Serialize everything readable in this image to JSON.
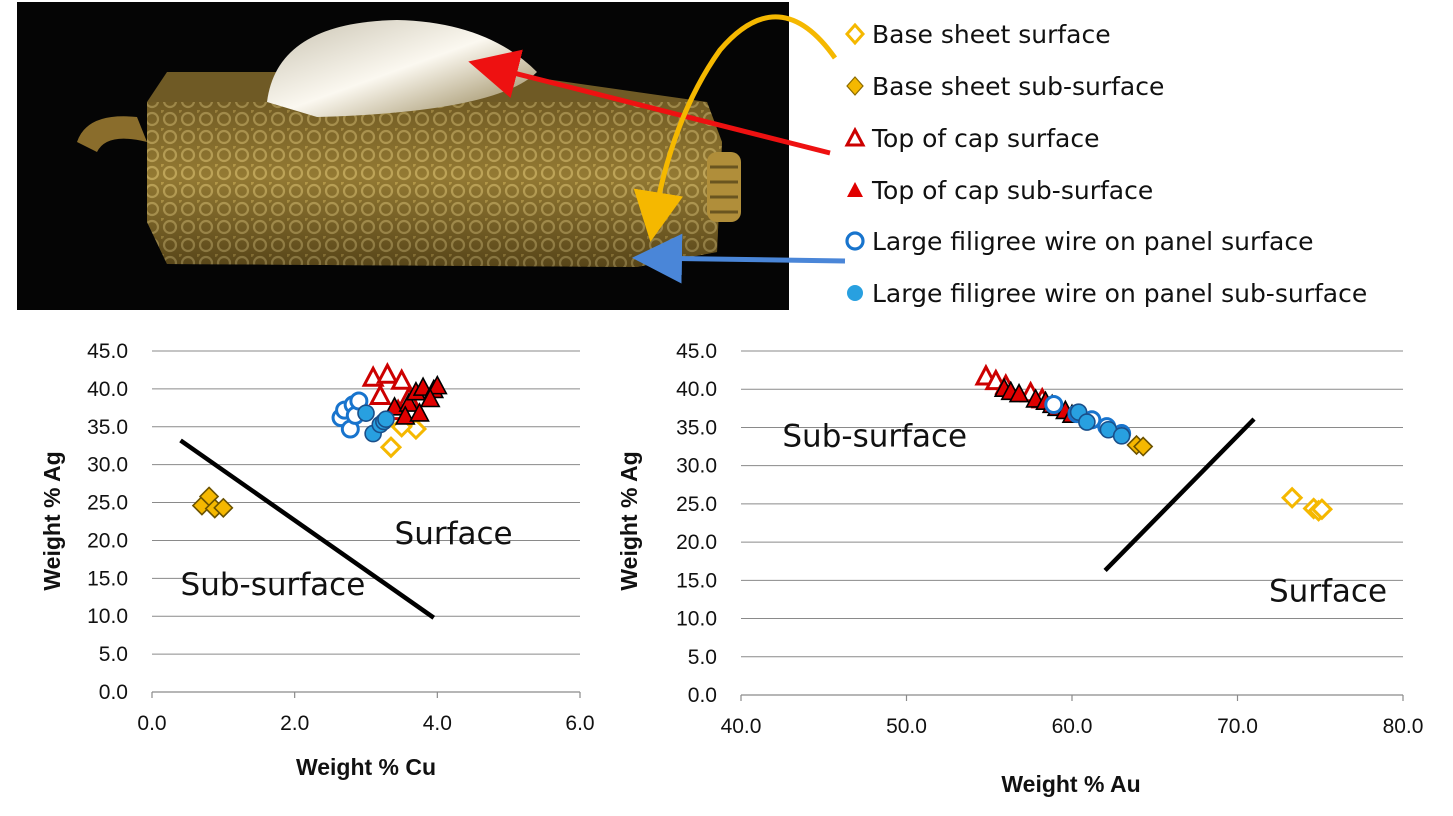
{
  "legend": [
    {
      "label": "Base sheet surface",
      "marker": "diamond",
      "filled": false,
      "color": "#F5B800"
    },
    {
      "label": "Base sheet sub-surface",
      "marker": "diamond",
      "filled": true,
      "color": "#F5B800"
    },
    {
      "label": "Top of cap surface",
      "marker": "triangle",
      "filled": false,
      "color": "#CC0000"
    },
    {
      "label": "Top of cap sub-surface",
      "marker": "triangle",
      "filled": true,
      "color": "#E00000"
    },
    {
      "label": "Large filigree wire on panel surface",
      "marker": "circle",
      "filled": false,
      "color": "#1874CD"
    },
    {
      "label": "Large filigree wire on panel sub-surface",
      "marker": "circle",
      "filled": true,
      "color": "#28A0E0"
    }
  ],
  "photo": {
    "description_icon": "gold-pendant-photo"
  },
  "chart_data": [
    {
      "type": "scatter",
      "xlabel": "Weight % Cu",
      "ylabel": "Weight % Ag",
      "xlim": [
        0,
        6
      ],
      "ylim": [
        0,
        45
      ],
      "xticks": [
        "0.0",
        "2.0",
        "4.0",
        "6.0"
      ],
      "yticks": [
        "0.0",
        "5.0",
        "10.0",
        "15.0",
        "20.0",
        "25.0",
        "30.0",
        "35.0",
        "40.0",
        "45.0"
      ],
      "grid": "horizontal",
      "annotations": [
        {
          "text": "Surface",
          "x": 3.4,
          "y": 19.5
        },
        {
          "text": "Sub-surface",
          "x": 0.4,
          "y": 12.8
        }
      ],
      "divider_line": {
        "x": [
          0.4,
          3.95
        ],
        "y": [
          33.2,
          9.8
        ]
      },
      "series": [
        {
          "marker": "diamond",
          "filled": false,
          "color": "#F5B800",
          "points": [
            [
              3.35,
              32.3
            ],
            [
              3.7,
              34.7
            ],
            [
              3.5,
              35.0
            ]
          ]
        },
        {
          "marker": "diamond",
          "filled": true,
          "color": "#F5B800",
          "points": [
            [
              0.7,
              24.6
            ],
            [
              0.8,
              25.8
            ],
            [
              0.88,
              24.2
            ],
            [
              1.0,
              24.3
            ]
          ]
        },
        {
          "marker": "triangle",
          "filled": false,
          "color": "#CC0000",
          "points": [
            [
              3.1,
              41.4
            ],
            [
              3.3,
              41.8
            ],
            [
              3.5,
              41.0
            ],
            [
              3.2,
              39.0
            ],
            [
              3.6,
              38.7
            ],
            [
              3.45,
              37.0
            ]
          ]
        },
        {
          "marker": "triangle",
          "filled": true,
          "color": "#E00000",
          "points": [
            [
              3.4,
              37.5
            ],
            [
              3.6,
              38.0
            ],
            [
              3.7,
              39.5
            ],
            [
              3.8,
              40.1
            ],
            [
              3.95,
              39.8
            ],
            [
              4.0,
              40.3
            ],
            [
              3.55,
              36.3
            ],
            [
              3.75,
              36.7
            ],
            [
              3.9,
              38.6
            ]
          ]
        },
        {
          "marker": "circle",
          "filled": false,
          "color": "#1874CD",
          "points": [
            [
              2.65,
              36.2
            ],
            [
              2.7,
              37.2
            ],
            [
              2.78,
              34.7
            ],
            [
              2.82,
              37.9
            ],
            [
              2.85,
              36.5
            ],
            [
              2.9,
              38.4
            ]
          ]
        },
        {
          "marker": "circle",
          "filled": true,
          "color": "#28A0E0",
          "points": [
            [
              3.0,
              36.8
            ],
            [
              3.1,
              34.1
            ],
            [
              3.2,
              35.3
            ],
            [
              3.25,
              35.7
            ],
            [
              3.28,
              36.0
            ]
          ]
        }
      ]
    },
    {
      "type": "scatter",
      "xlabel": "Weight % Au",
      "ylabel": "Weight % Ag",
      "xlim": [
        40,
        80
      ],
      "ylim": [
        0,
        45
      ],
      "xticks": [
        "40.0",
        "50.0",
        "60.0",
        "70.0",
        "80.0"
      ],
      "yticks": [
        "0.0",
        "5.0",
        "10.0",
        "15.0",
        "20.0",
        "25.0",
        "30.0",
        "35.0",
        "40.0",
        "45.0"
      ],
      "grid": "horizontal",
      "annotations": [
        {
          "text": "Sub-surface",
          "x": 42.5,
          "y": 32.5
        },
        {
          "text": "Surface",
          "x": 71.9,
          "y": 12.2
        }
      ],
      "divider_line": {
        "x": [
          62.0,
          71.0
        ],
        "y": [
          16.3,
          36.1
        ]
      },
      "series": [
        {
          "marker": "diamond",
          "filled": false,
          "color": "#F5B800",
          "points": [
            [
              73.3,
              25.8
            ],
            [
              74.6,
              24.4
            ],
            [
              74.9,
              24.1
            ],
            [
              75.1,
              24.3
            ]
          ]
        },
        {
          "marker": "diamond",
          "filled": true,
          "color": "#F5B800",
          "points": [
            [
              63.9,
              32.7
            ],
            [
              64.3,
              32.5
            ]
          ]
        },
        {
          "marker": "triangle",
          "filled": false,
          "color": "#CC0000",
          "points": [
            [
              54.8,
              41.6
            ],
            [
              55.4,
              41.0
            ],
            [
              56.0,
              40.4
            ],
            [
              57.5,
              39.4
            ],
            [
              58.2,
              38.6
            ]
          ]
        },
        {
          "marker": "triangle",
          "filled": true,
          "color": "#E00000",
          "points": [
            [
              55.9,
              40.0
            ],
            [
              56.3,
              39.6
            ],
            [
              56.8,
              39.3
            ],
            [
              57.8,
              38.6
            ],
            [
              58.4,
              38.3
            ],
            [
              58.8,
              37.9
            ],
            [
              59.1,
              37.5
            ],
            [
              59.6,
              37.1
            ],
            [
              60.0,
              36.6
            ]
          ]
        },
        {
          "marker": "circle",
          "filled": false,
          "color": "#1874CD",
          "points": [
            [
              58.9,
              38.0
            ],
            [
              60.3,
              36.8
            ],
            [
              61.2,
              36.0
            ],
            [
              62.1,
              35.1
            ],
            [
              63.0,
              34.2
            ]
          ]
        },
        {
          "marker": "circle",
          "filled": true,
          "color": "#28A0E0",
          "points": [
            [
              60.4,
              37.0
            ],
            [
              60.9,
              35.7
            ],
            [
              62.2,
              34.7
            ],
            [
              63.0,
              33.9
            ]
          ]
        }
      ]
    }
  ]
}
